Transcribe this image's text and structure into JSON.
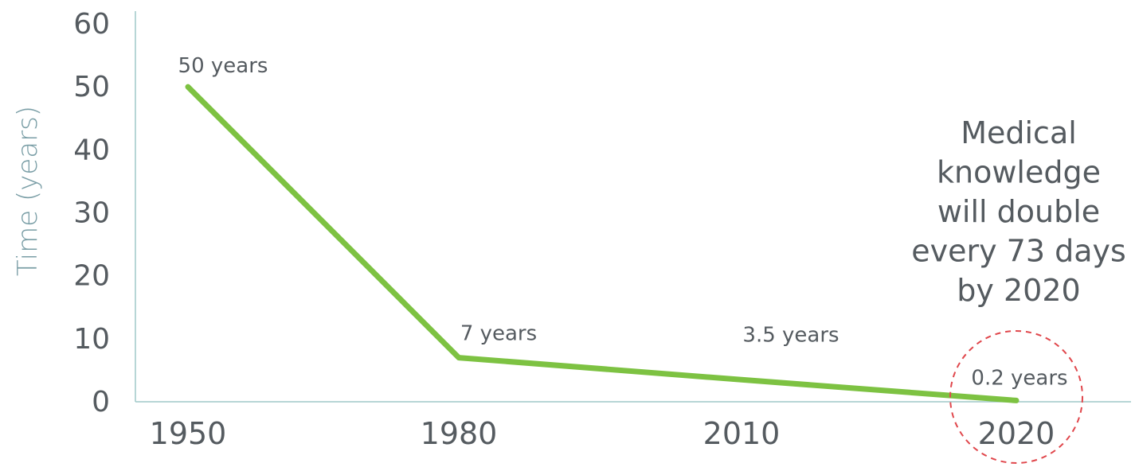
{
  "chart_data": {
    "type": "line",
    "ylabel": "Time (years)",
    "xlabel": "",
    "ylim": [
      0,
      60
    ],
    "yticks": [
      0,
      10,
      20,
      30,
      40,
      50,
      60
    ],
    "categories": [
      "1950",
      "1980",
      "2010",
      "2020"
    ],
    "series": [
      {
        "values": [
          50,
          7,
          3.5,
          0.2
        ],
        "labels": [
          "50 years",
          "7 years",
          "3.5 years",
          "0.2 years"
        ],
        "color": "#7dc242"
      }
    ],
    "grid": false,
    "annotation": {
      "lines": [
        "Medical",
        "knowledge",
        "will double",
        "every 73 days",
        "by 2020"
      ]
    },
    "highlight": {
      "category": "2020",
      "shape": "dashed-circle",
      "color": "#e0474c"
    },
    "axis_color": "#9fc9c8"
  }
}
